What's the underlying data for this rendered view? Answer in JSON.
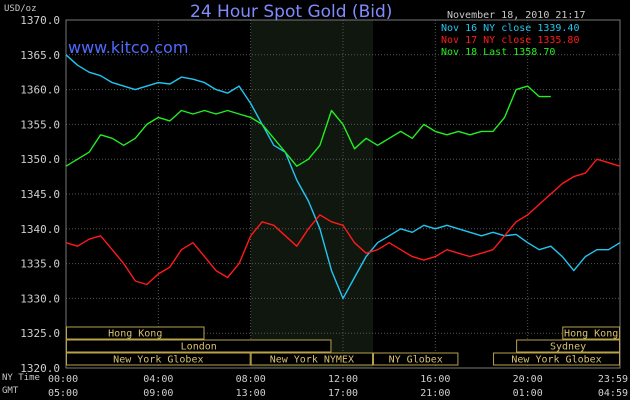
{
  "header": {
    "title": "24 Hour Spot Gold (Bid)",
    "site": "www.kitco.com",
    "unit": "USD/oz",
    "date": "November 18, 2010 21:17"
  },
  "colors": {
    "background": "#000000",
    "grid": "#555555",
    "series1": "#22c6f0",
    "series2": "#ff1a1a",
    "series3": "#22ee22",
    "session_band": "#0f170f"
  },
  "chart_data": {
    "type": "line",
    "ylim": [
      1320,
      1370
    ],
    "xlim": [
      0,
      24
    ],
    "y_ticks": [
      "1320.0",
      "1325.0",
      "1330.0",
      "1335.0",
      "1340.0",
      "1345.0",
      "1350.0",
      "1355.0",
      "1360.0",
      "1365.0",
      "1370.0"
    ],
    "x_ticks_ny": [
      "00:00",
      "04:00",
      "08:00",
      "12:00",
      "16:00",
      "20:00",
      "23:59"
    ],
    "x_ticks_gmt": [
      "05:00",
      "09:00",
      "13:00",
      "17:00",
      "21:00",
      "01:00",
      "04:59"
    ],
    "row_label_ny": "NY Time",
    "row_label_gmt": "GMT",
    "highlight_hours": [
      8.0,
      13.3
    ],
    "series": [
      {
        "name": "Nov 16 NY close 1339.40",
        "color": "#22c6f0",
        "x": [
          0,
          0.5,
          1,
          1.5,
          2,
          2.5,
          3,
          3.5,
          4,
          4.5,
          5,
          5.5,
          6,
          6.5,
          7,
          7.5,
          8,
          8.5,
          9,
          9.5,
          10,
          10.5,
          11,
          11.5,
          12,
          12.5,
          13,
          13.5,
          14,
          14.5,
          15,
          15.5,
          16,
          16.5,
          17,
          17.5,
          18,
          18.5,
          19,
          19.5,
          20,
          20.5,
          21,
          21.5,
          22,
          22.5,
          23,
          23.5,
          24
        ],
        "values": [
          1365,
          1363.5,
          1362.5,
          1362,
          1361,
          1360.5,
          1360,
          1360.5,
          1361,
          1360.8,
          1361.8,
          1361.5,
          1361,
          1360,
          1359.5,
          1360.5,
          1358,
          1355,
          1352,
          1351,
          1347,
          1344,
          1340,
          1334,
          1330,
          1333,
          1336,
          1338,
          1339,
          1340,
          1339.5,
          1340.5,
          1340,
          1340.5,
          1340,
          1339.5,
          1339,
          1339.5,
          1339,
          1339.2,
          1338,
          1337,
          1337.5,
          1336,
          1334,
          1336,
          1337,
          1337,
          1338
        ]
      },
      {
        "name": "Nov 17 NY close 1335.80",
        "color": "#ff1a1a",
        "x": [
          0,
          0.5,
          1,
          1.5,
          2,
          2.5,
          3,
          3.5,
          4,
          4.5,
          5,
          5.5,
          6,
          6.5,
          7,
          7.5,
          8,
          8.5,
          9,
          9.5,
          10,
          10.5,
          11,
          11.5,
          12,
          12.5,
          13,
          13.5,
          14,
          14.5,
          15,
          15.5,
          16,
          16.5,
          17,
          17.5,
          18,
          18.5,
          19,
          19.5,
          20,
          20.5,
          21,
          21.5,
          22,
          22.5,
          23,
          23.5,
          24
        ],
        "values": [
          1338,
          1337.5,
          1338.5,
          1339,
          1337,
          1335,
          1332.5,
          1332,
          1333.5,
          1334.5,
          1337,
          1338,
          1336,
          1334,
          1333,
          1335,
          1339,
          1341,
          1340.5,
          1339,
          1337.5,
          1340,
          1342,
          1341,
          1340.5,
          1338,
          1336.5,
          1337,
          1338,
          1337,
          1336,
          1335.5,
          1336,
          1337,
          1336.5,
          1336,
          1336.5,
          1337,
          1339,
          1341,
          1342,
          1343.5,
          1345,
          1346.5,
          1347.5,
          1348,
          1350,
          1349.5,
          1349
        ]
      },
      {
        "name": "Nov 18 Last 1358.70",
        "color": "#22ee22",
        "x": [
          0,
          0.5,
          1,
          1.5,
          2,
          2.5,
          3,
          3.5,
          4,
          4.5,
          5,
          5.5,
          6,
          6.5,
          7,
          7.5,
          8,
          8.5,
          9,
          9.5,
          10,
          10.5,
          11,
          11.5,
          12,
          12.5,
          13,
          13.5,
          14,
          14.5,
          15,
          15.5,
          16,
          16.5,
          17,
          17.5,
          18,
          18.5,
          19,
          19.5,
          20,
          20.5,
          21
        ],
        "values": [
          1349,
          1350,
          1351,
          1353.5,
          1353,
          1352,
          1353,
          1355,
          1356,
          1355.5,
          1357,
          1356.5,
          1357,
          1356.5,
          1357,
          1356.5,
          1356,
          1355,
          1353,
          1351,
          1349,
          1350,
          1352,
          1357,
          1355,
          1351.5,
          1353,
          1352,
          1353,
          1354,
          1353,
          1355,
          1354,
          1353.5,
          1354,
          1353.5,
          1354,
          1354,
          1356,
          1360,
          1360.5,
          1359,
          1359
        ]
      }
    ],
    "sessions": [
      {
        "label": "Hong Kong",
        "row": 0,
        "start": 0,
        "end": 6
      },
      {
        "label": "Hong Kong",
        "row": 0,
        "start": 21.5,
        "end": 24
      },
      {
        "label": "London",
        "row": 1,
        "start": 0,
        "end": 11.5
      },
      {
        "label": "Sydney",
        "row": 1,
        "start": 19.5,
        "end": 24
      },
      {
        "label": "New York Globex",
        "row": 2,
        "start": 0,
        "end": 8
      },
      {
        "label": "New York NYMEX",
        "row": 2,
        "start": 8,
        "end": 13.3
      },
      {
        "label": "NY Globex",
        "row": 2,
        "start": 13.3,
        "end": 17
      },
      {
        "label": "New York Globex",
        "row": 2,
        "start": 18.5,
        "end": 24
      }
    ]
  }
}
